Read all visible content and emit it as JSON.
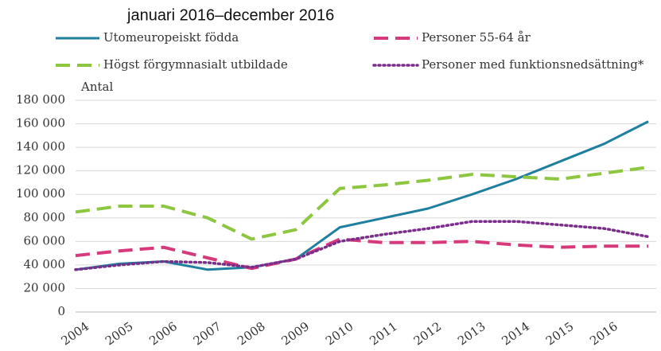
{
  "chart_data": {
    "type": "line",
    "subtitle": "januari 2016–december 2016",
    "y_label": "Antal",
    "categories": [
      "2004",
      "2005",
      "2006",
      "2007",
      "2008",
      "2009",
      "2010",
      "2011",
      "2012",
      "2013",
      "2014",
      "2015",
      "2016",
      null
    ],
    "series": [
      {
        "name": "Utomeuropeiskt födda",
        "color": "#1f7f9e",
        "dash": "solid",
        "values": [
          36000,
          41000,
          43000,
          36000,
          38000,
          45000,
          72000,
          80000,
          88000,
          100000,
          113000,
          128000,
          143000,
          162000
        ]
      },
      {
        "name": "Personer 55-64 år",
        "color": "#d63a7a",
        "dash": "dashed",
        "values": [
          48000,
          52000,
          55000,
          46000,
          37000,
          45000,
          62000,
          59000,
          59000,
          60000,
          57000,
          55000,
          56000,
          56000
        ]
      },
      {
        "name": "Högst förgymnasialt utbildade",
        "color": "#8dc63f",
        "dash": "dashed",
        "values": [
          85000,
          90000,
          90000,
          80000,
          62000,
          70000,
          105000,
          108000,
          112000,
          117000,
          115000,
          113000,
          118000,
          123000
        ]
      },
      {
        "name": "Personer med funktionsnedsättning*",
        "color": "#7b2d8b",
        "dash": "dotted",
        "values": [
          36000,
          40000,
          43000,
          42000,
          38000,
          45000,
          60000,
          66000,
          71000,
          77000,
          77000,
          74000,
          71000,
          64000
        ]
      }
    ],
    "ylim": [
      0,
      180000
    ],
    "yticks": [
      {
        "value": 0,
        "label": "0"
      },
      {
        "value": 20000,
        "label": "20 000"
      },
      {
        "value": 40000,
        "label": "40 000"
      },
      {
        "value": 60000,
        "label": "60 000"
      },
      {
        "value": 80000,
        "label": "80 000"
      },
      {
        "value": 100000,
        "label": "100 000"
      },
      {
        "value": 120000,
        "label": "120 000"
      },
      {
        "value": 140000,
        "label": "140 000"
      },
      {
        "value": 160000,
        "label": "160 000"
      },
      {
        "value": 180000,
        "label": "180 000"
      }
    ],
    "grid": true
  }
}
